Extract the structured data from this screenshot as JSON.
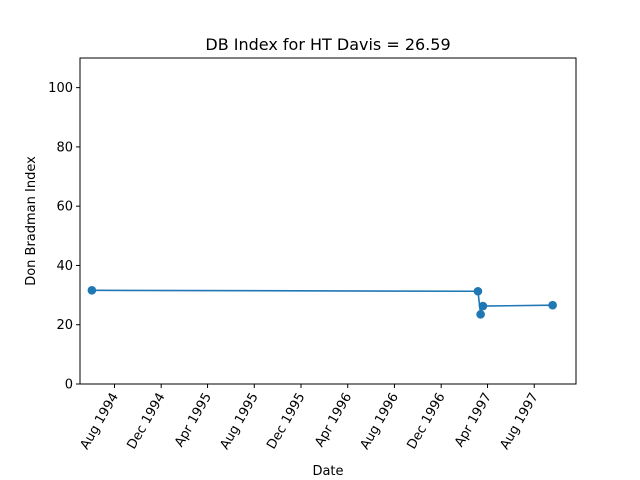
{
  "chart_data": {
    "type": "line",
    "title": "DB Index for HT Davis = 26.59",
    "xlabel": "Date",
    "ylabel": "Don Bradman Index",
    "ylim": [
      0,
      110
    ],
    "yticks": [
      0,
      20,
      40,
      60,
      80,
      100
    ],
    "xlim": [
      "1994-05-03",
      "1997-11-18"
    ],
    "xticks": [
      {
        "date": "1994-08-01",
        "label": "Aug 1994"
      },
      {
        "date": "1994-12-01",
        "label": "Dec 1994"
      },
      {
        "date": "1995-04-01",
        "label": "Apr 1995"
      },
      {
        "date": "1995-08-01",
        "label": "Aug 1995"
      },
      {
        "date": "1995-12-01",
        "label": "Dec 1995"
      },
      {
        "date": "1996-04-01",
        "label": "Apr 1996"
      },
      {
        "date": "1996-08-01",
        "label": "Aug 1996"
      },
      {
        "date": "1996-12-01",
        "label": "Dec 1996"
      },
      {
        "date": "1997-04-01",
        "label": "Apr 1997"
      },
      {
        "date": "1997-08-01",
        "label": "Aug 1997"
      }
    ],
    "grid": false,
    "legend": "none",
    "series": [
      {
        "color": "#1f77b4",
        "points": [
          {
            "x": "1994-06-03",
            "y": 31.6
          },
          {
            "x": "1997-03-07",
            "y": 31.3
          },
          {
            "x": "1997-03-14",
            "y": 23.5
          },
          {
            "x": "1997-03-20",
            "y": 26.3
          },
          {
            "x": "1997-09-18",
            "y": 26.59
          }
        ]
      }
    ]
  }
}
